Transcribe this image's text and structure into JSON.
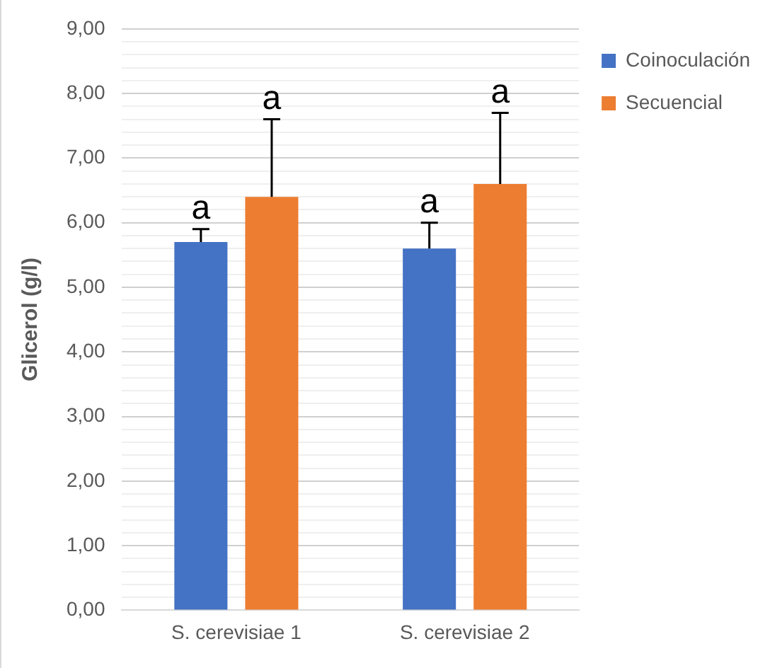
{
  "chart_data": {
    "type": "bar",
    "ylabel": "Glicerol (g/l)",
    "categories": [
      "S. cerevisiae 1",
      "S. cerevisiae 2"
    ],
    "series": [
      {
        "name": "Coinoculación",
        "color": "#4472c4",
        "values": [
          5.7,
          5.6
        ],
        "errors": [
          [
            5.7,
            5.9
          ],
          [
            5.6,
            6.0
          ]
        ],
        "value_labels": [
          "a",
          "a"
        ]
      },
      {
        "name": "Secuencial",
        "color": "#ed7d31",
        "values": [
          6.4,
          6.6
        ],
        "errors": [
          [
            6.4,
            7.6
          ],
          [
            6.6,
            7.7
          ]
        ],
        "value_labels": [
          "a",
          "a"
        ]
      }
    ],
    "ylim": [
      0,
      9
    ],
    "yticks": [
      {
        "value": 0,
        "label": "0,00"
      },
      {
        "value": 0.2,
        "label": null
      },
      {
        "value": 0.4,
        "label": null
      },
      {
        "value": 0.6,
        "label": null
      },
      {
        "value": 0.8,
        "label": null
      },
      {
        "value": 1,
        "label": "1,00"
      },
      {
        "value": 1.2,
        "label": null
      },
      {
        "value": 1.4,
        "label": null
      },
      {
        "value": 1.6,
        "label": null
      },
      {
        "value": 1.8,
        "label": null
      },
      {
        "value": 2,
        "label": "2,00"
      },
      {
        "value": 2.2,
        "label": null
      },
      {
        "value": 2.4,
        "label": null
      },
      {
        "value": 2.6,
        "label": null
      },
      {
        "value": 2.8,
        "label": null
      },
      {
        "value": 3,
        "label": "3,00"
      },
      {
        "value": 3.2,
        "label": null
      },
      {
        "value": 3.4,
        "label": null
      },
      {
        "value": 3.6,
        "label": null
      },
      {
        "value": 3.8,
        "label": null
      },
      {
        "value": 4,
        "label": "4,00"
      },
      {
        "value": 4.2,
        "label": null
      },
      {
        "value": 4.4,
        "label": null
      },
      {
        "value": 4.6,
        "label": null
      },
      {
        "value": 4.8,
        "label": null
      },
      {
        "value": 5,
        "label": "5,00"
      },
      {
        "value": 5.2,
        "label": null
      },
      {
        "value": 5.4,
        "label": null
      },
      {
        "value": 5.6,
        "label": null
      },
      {
        "value": 5.8,
        "label": null
      },
      {
        "value": 6,
        "label": "6,00"
      },
      {
        "value": 6.2,
        "label": null
      },
      {
        "value": 6.4,
        "label": null
      },
      {
        "value": 6.6,
        "label": null
      },
      {
        "value": 6.8,
        "label": null
      },
      {
        "value": 7,
        "label": "7,00"
      },
      {
        "value": 7.2,
        "label": null
      },
      {
        "value": 7.4,
        "label": null
      },
      {
        "value": 7.6,
        "label": null
      },
      {
        "value": 7.8,
        "label": null
      },
      {
        "value": 8,
        "label": "8,00"
      },
      {
        "value": 8.2,
        "label": null
      },
      {
        "value": 8.4,
        "label": null
      },
      {
        "value": 8.6,
        "label": null
      },
      {
        "value": 8.8,
        "label": null
      },
      {
        "value": 9,
        "label": "9,00"
      }
    ],
    "grid": true,
    "legend": "top right"
  }
}
